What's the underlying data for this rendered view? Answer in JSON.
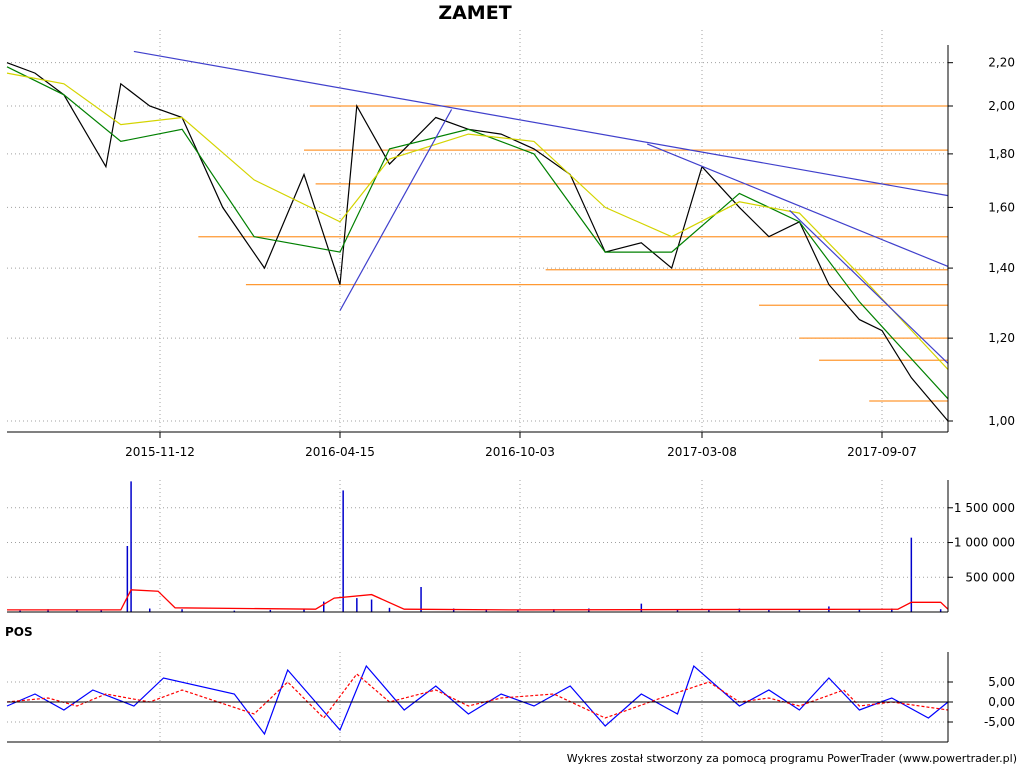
{
  "chart_data": [
    {
      "type": "line",
      "title": "ZAMET",
      "x_tick_labels": [
        "2015-11-12",
        "2016-04-15",
        "2016-10-03",
        "2017-03-08",
        "2017-09-07"
      ],
      "y_scale": "log",
      "y_tick_values": [
        1.0,
        1.2,
        1.4,
        1.6,
        1.8,
        2.0,
        2.2
      ],
      "y_tick_labels": [
        "1,00",
        "1,20",
        "1,40",
        "1,60",
        "1,80",
        "2,00",
        "2,20"
      ],
      "ylim": [
        0.99,
        2.26
      ],
      "grid": true,
      "series": [
        {
          "color": "#000000",
          "x": [
            "2015-06-01",
            "2015-07-01",
            "2015-08-01",
            "2015-09-15",
            "2015-10-01",
            "2015-11-01",
            "2015-12-01",
            "2016-01-05",
            "2016-02-10",
            "2016-03-15",
            "2016-04-15",
            "2016-05-01",
            "2016-06-01",
            "2016-07-15",
            "2016-08-15",
            "2016-09-15",
            "2016-10-15",
            "2016-11-15",
            "2016-12-15",
            "2017-01-15",
            "2017-02-10",
            "2017-03-08",
            "2017-04-15",
            "2017-05-15",
            "2017-06-15",
            "2017-07-15",
            "2017-08-15",
            "2017-09-07",
            "2017-10-01",
            "2017-10-31"
          ],
          "values": [
            2.2,
            2.15,
            2.05,
            1.75,
            2.1,
            2.0,
            1.95,
            1.6,
            1.4,
            1.72,
            1.35,
            2.0,
            1.76,
            1.95,
            1.9,
            1.88,
            1.82,
            1.72,
            1.45,
            1.48,
            1.4,
            1.75,
            1.6,
            1.5,
            1.55,
            1.35,
            1.25,
            1.22,
            1.1,
            1.0
          ]
        },
        {
          "color": "#008000",
          "x": [
            "2015-06-01",
            "2015-08-01",
            "2015-10-01",
            "2015-12-01",
            "2016-02-01",
            "2016-04-15",
            "2016-06-01",
            "2016-08-15",
            "2016-10-15",
            "2016-12-15",
            "2017-02-10",
            "2017-04-15",
            "2017-06-15",
            "2017-08-15",
            "2017-10-31"
          ],
          "values": [
            2.18,
            2.05,
            1.85,
            1.9,
            1.5,
            1.45,
            1.82,
            1.9,
            1.8,
            1.45,
            1.45,
            1.65,
            1.55,
            1.3,
            1.05
          ]
        },
        {
          "color": "#d4d400",
          "x": [
            "2015-06-01",
            "2015-08-01",
            "2015-10-01",
            "2015-12-01",
            "2016-02-01",
            "2016-04-15",
            "2016-06-01",
            "2016-08-15",
            "2016-10-15",
            "2016-12-15",
            "2017-02-10",
            "2017-04-15",
            "2017-06-15",
            "2017-08-15",
            "2017-10-31"
          ],
          "values": [
            2.15,
            2.1,
            1.92,
            1.95,
            1.7,
            1.55,
            1.78,
            1.88,
            1.85,
            1.6,
            1.5,
            1.62,
            1.58,
            1.38,
            1.12
          ]
        }
      ]
    },
    {
      "type": "bar",
      "y_tick_values": [
        500000,
        1000000,
        1500000
      ],
      "y_tick_labels": [
        "500 000",
        "1 000 000",
        "1 500 000"
      ],
      "ylim": [
        0,
        1900000
      ],
      "grid": true,
      "series": [
        {
          "color": "#0000cc",
          "x": [
            "2015-06-15",
            "2015-07-15",
            "2015-08-15",
            "2015-09-10",
            "2015-10-08",
            "2015-10-12",
            "2015-11-01",
            "2015-12-01",
            "2016-01-15",
            "2016-02-15",
            "2016-03-15",
            "2016-04-01",
            "2016-04-18",
            "2016-05-01",
            "2016-05-15",
            "2016-06-01",
            "2016-07-01",
            "2016-08-01",
            "2016-09-01",
            "2016-10-01",
            "2016-11-01",
            "2016-12-01",
            "2017-01-15",
            "2017-02-15",
            "2017-03-15",
            "2017-04-15",
            "2017-05-15",
            "2017-06-15",
            "2017-07-15",
            "2017-08-15",
            "2017-09-15",
            "2017-10-01",
            "2017-10-25"
          ],
          "values": [
            20000,
            40000,
            25000,
            30000,
            950000,
            1880000,
            50000,
            40000,
            20000,
            30000,
            40000,
            150000,
            1750000,
            200000,
            180000,
            60000,
            360000,
            50000,
            40000,
            30000,
            40000,
            50000,
            120000,
            40000,
            30000,
            50000,
            40000,
            30000,
            80000,
            40000,
            50000,
            1070000,
            40000
          ]
        },
        {
          "color": "#ff0000",
          "x": [
            "2015-06-01",
            "2015-10-01",
            "2015-10-12",
            "2015-11-10",
            "2015-11-25",
            "2016-03-25",
            "2016-04-10",
            "2016-05-15",
            "2016-06-15",
            "2016-10-01",
            "2017-09-20",
            "2017-10-01",
            "2017-10-25",
            "2017-10-31"
          ],
          "values": [
            30000,
            30000,
            320000,
            300000,
            60000,
            40000,
            200000,
            250000,
            40000,
            30000,
            40000,
            140000,
            140000,
            40000
          ]
        }
      ]
    },
    {
      "type": "line",
      "title": "POS",
      "y_tick_values": [
        5,
        0,
        -5
      ],
      "y_tick_labels": [
        "5,00",
        "0,00",
        "-5,00"
      ],
      "ylim": [
        -8.5,
        9.5
      ],
      "grid": true,
      "series": [
        {
          "color": "#0000ff",
          "x": [
            "2015-06-01",
            "2015-07-01",
            "2015-08-01",
            "2015-09-01",
            "2015-10-15",
            "2015-11-15",
            "2016-01-15",
            "2016-02-10",
            "2016-03-01",
            "2016-04-15",
            "2016-05-10",
            "2016-06-15",
            "2016-07-15",
            "2016-08-15",
            "2016-09-15",
            "2016-10-15",
            "2016-11-15",
            "2016-12-15",
            "2017-01-15",
            "2017-02-15",
            "2017-03-01",
            "2017-04-15",
            "2017-05-15",
            "2017-06-15",
            "2017-07-15",
            "2017-08-15",
            "2017-09-15",
            "2017-10-15",
            "2017-10-31"
          ],
          "values": [
            -1,
            2,
            -2,
            3,
            -1,
            6,
            2,
            -8,
            8,
            -7,
            9,
            -2,
            4,
            -3,
            2,
            -1,
            4,
            -6,
            2,
            -3,
            9,
            -1,
            3,
            -2,
            6,
            -2,
            1,
            -4,
            0
          ]
        },
        {
          "color": "#ff0000",
          "dash": "dashed",
          "x": [
            "2015-06-01",
            "2015-07-15",
            "2015-08-15",
            "2015-09-15",
            "2015-11-01",
            "2015-12-01",
            "2016-02-01",
            "2016-03-01",
            "2016-04-01",
            "2016-05-01",
            "2016-06-01",
            "2016-07-15",
            "2016-08-15",
            "2016-09-15",
            "2016-11-01",
            "2016-12-15",
            "2017-02-01",
            "2017-03-15",
            "2017-04-15",
            "2017-05-15",
            "2017-06-15",
            "2017-07-30",
            "2017-08-15",
            "2017-09-15",
            "2017-10-31"
          ],
          "values": [
            0,
            1,
            -1,
            2,
            0,
            3,
            -3,
            5,
            -4,
            7,
            0,
            3,
            -1,
            1,
            2,
            -4,
            1,
            5,
            0,
            1,
            -1,
            3,
            -1,
            0,
            -2
          ]
        }
      ]
    }
  ],
  "annotations": {
    "horizontal_levels": {
      "color": "#ff9933",
      "levels": [
        {
          "value": 2.0,
          "from": "2016-03-20"
        },
        {
          "value": 1.815,
          "from": "2016-03-15"
        },
        {
          "value": 1.685,
          "from": "2016-03-25"
        },
        {
          "value": 1.5,
          "from": "2015-12-15"
        },
        {
          "value": 1.395,
          "from": "2016-10-25"
        },
        {
          "value": 1.35,
          "from": "2016-01-25"
        },
        {
          "value": 1.29,
          "from": "2017-05-05"
        },
        {
          "value": 1.2,
          "from": "2017-06-15"
        },
        {
          "value": 1.143,
          "from": "2017-07-05"
        },
        {
          "value": 1.045,
          "from": "2017-08-25"
        }
      ]
    },
    "trend_lines": {
      "color": "#4040cc",
      "lines": [
        {
          "from": [
            "2015-10-15",
            2.255
          ],
          "to": [
            "2017-10-31",
            1.642
          ]
        },
        {
          "from": [
            "2016-04-15",
            1.275
          ],
          "to": [
            "2016-07-30",
            1.985
          ]
        },
        {
          "from": [
            "2017-01-20",
            1.84
          ],
          "to": [
            "2017-10-31",
            1.405
          ]
        },
        {
          "from": [
            "2017-06-05",
            1.59
          ],
          "to": [
            "2017-10-31",
            1.135
          ]
        }
      ]
    }
  },
  "footer": "Wykres został stworzony za pomocą programu PowerTrader (www.powertrader.pl)"
}
